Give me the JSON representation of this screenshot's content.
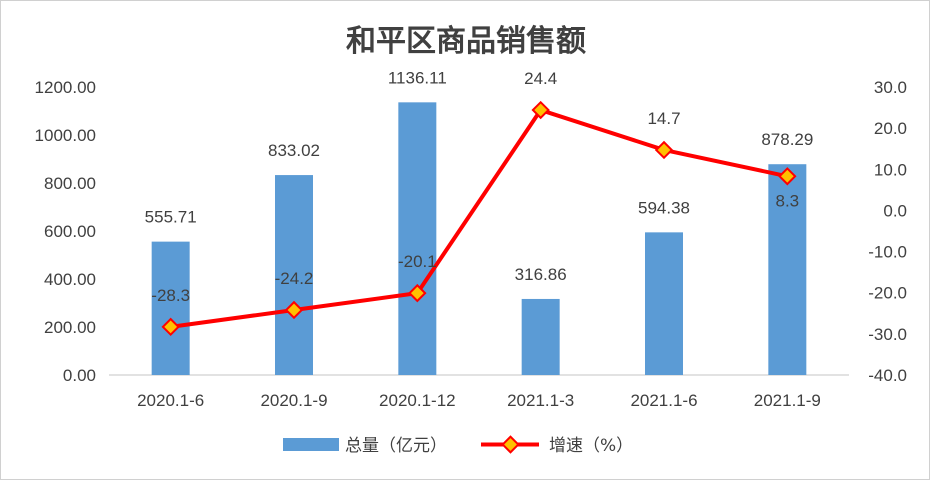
{
  "chart_data": {
    "type": "bar",
    "title": "和平区商品销售额",
    "categories": [
      "2020.1-6",
      "2020.1-9",
      "2020.1-12",
      "2021.1-3",
      "2021.1-6",
      "2021.1-9"
    ],
    "series": [
      {
        "name": "总量（亿元）",
        "type": "bar",
        "axis": "left",
        "color": "#5b9bd5",
        "values": [
          555.71,
          833.02,
          1136.11,
          316.86,
          594.38,
          878.29
        ],
        "labels": [
          "555.71",
          "833.02",
          "1136.11",
          "316.86",
          "594.38",
          "878.29"
        ]
      },
      {
        "name": "增速（%）",
        "type": "line",
        "axis": "right",
        "color": "#ff0000",
        "marker_color": "#ff0000",
        "marker_fill": "#ffc000",
        "values": [
          -28.3,
          -24.2,
          -20.1,
          24.4,
          14.7,
          8.3
        ],
        "labels": [
          "-28.3",
          "-24.2",
          "-20.1",
          "24.4",
          "14.7",
          "8.3"
        ]
      }
    ],
    "y_left": {
      "min": 0,
      "max": 1200,
      "ticks": [
        "0.00",
        "200.00",
        "400.00",
        "600.00",
        "800.00",
        "1000.00",
        "1200.00"
      ]
    },
    "y_right": {
      "min": -40,
      "max": 30,
      "ticks": [
        "-40.0",
        "-30.0",
        "-20.0",
        "-10.0",
        "0.0",
        "10.0",
        "20.0",
        "30.0"
      ]
    },
    "grid": false,
    "legend_position": "bottom"
  }
}
